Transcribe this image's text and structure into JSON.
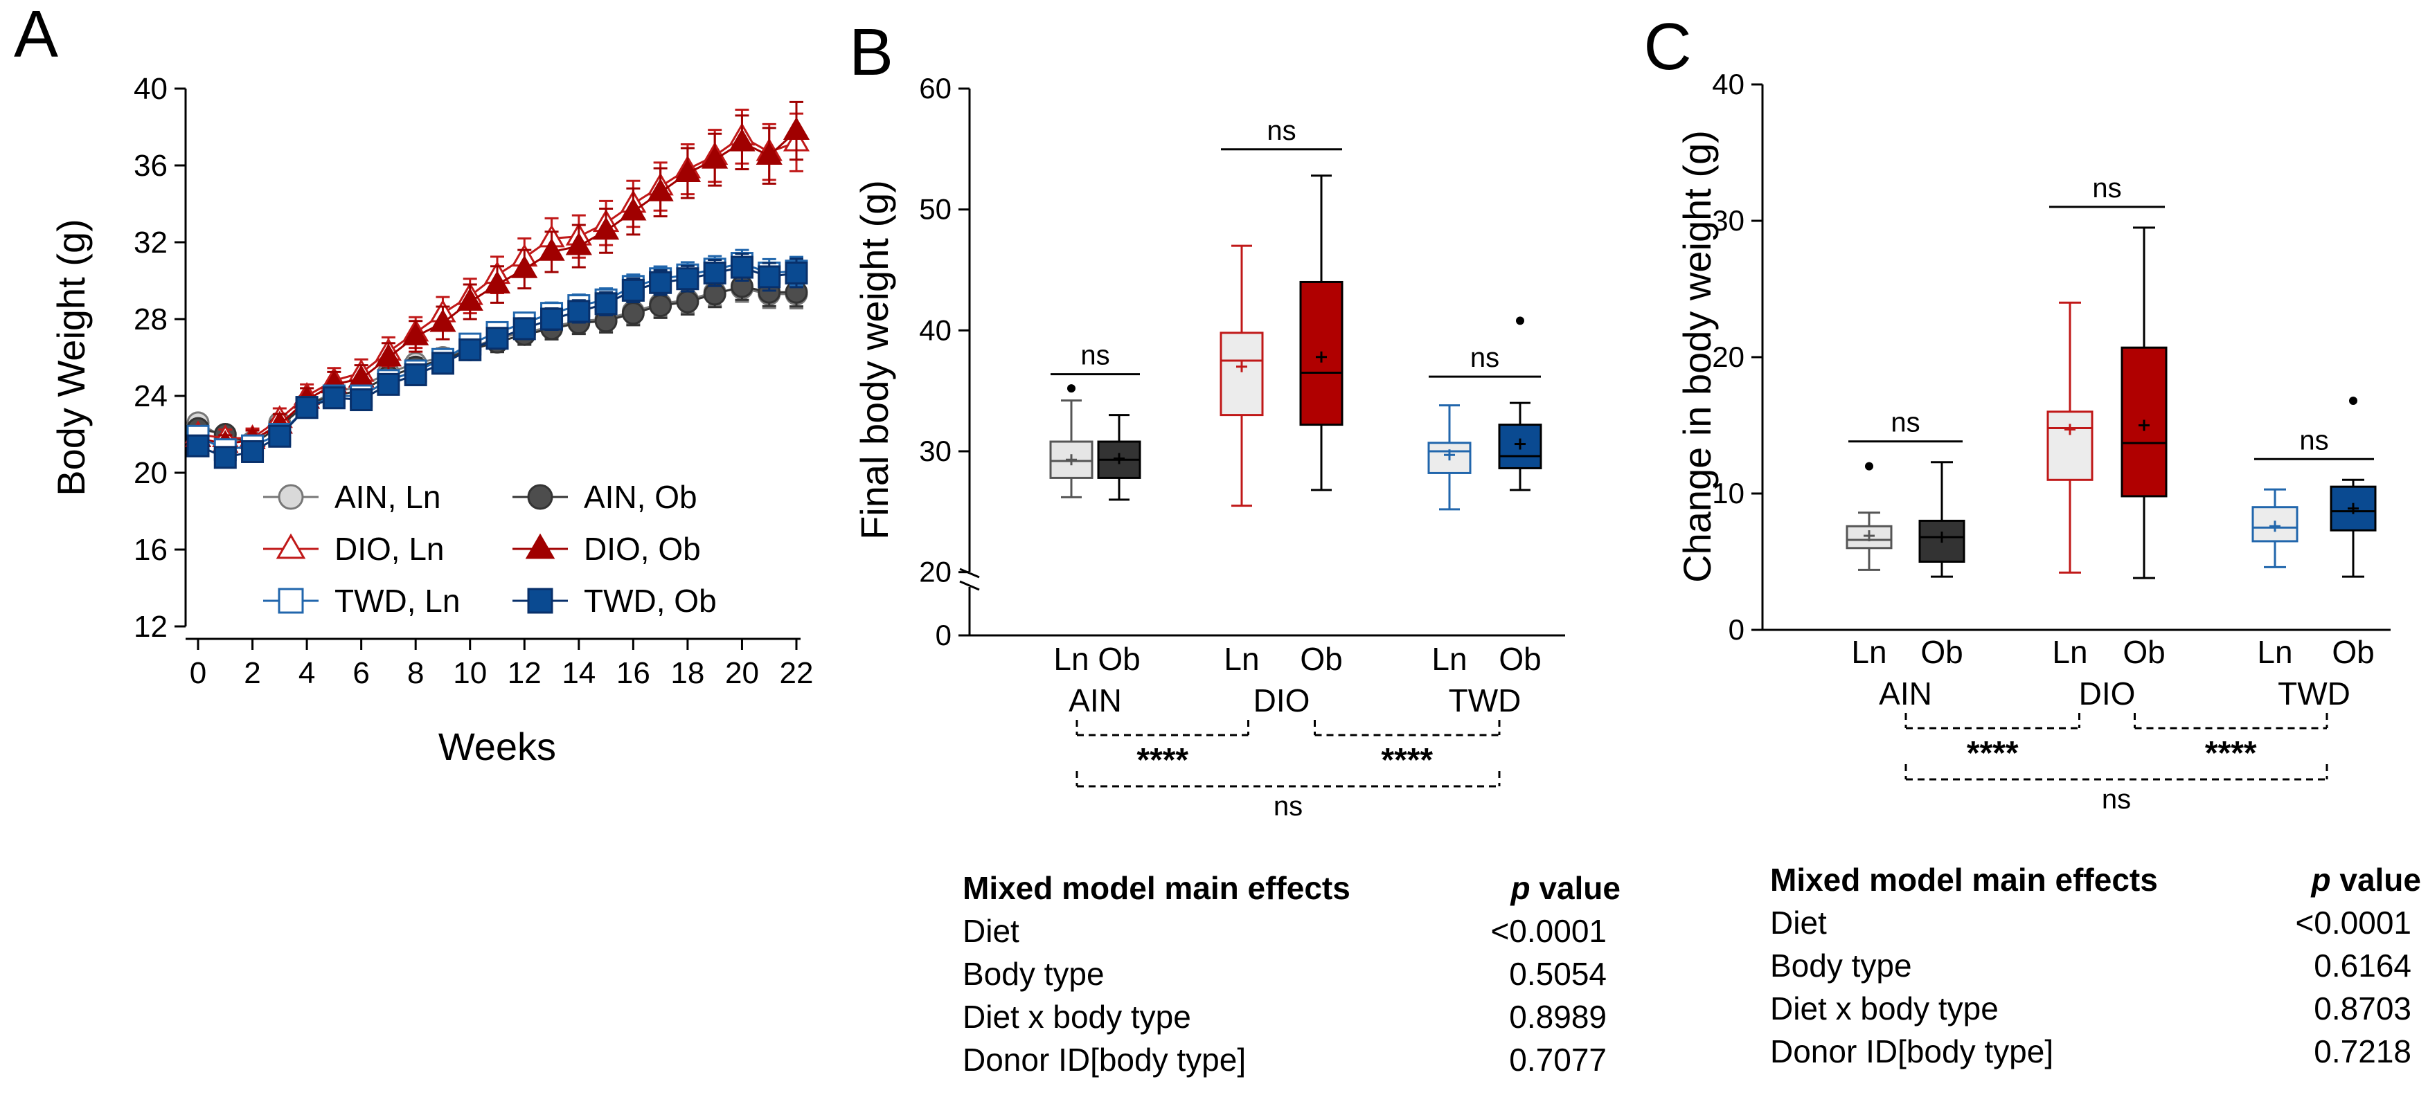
{
  "panels": {
    "A": {
      "letter": "A",
      "chart_data": {
        "type": "line",
        "xlabel": "Weeks",
        "ylabel": "Body Weight (g)",
        "xlim": [
          0,
          22
        ],
        "ylim": [
          12,
          40
        ],
        "xticks": [
          "0",
          "2",
          "4",
          "6",
          "8",
          "10",
          "12",
          "14",
          "16",
          "18",
          "20",
          "22"
        ],
        "yticks": [
          "12",
          "16",
          "20",
          "24",
          "28",
          "32",
          "36",
          "40"
        ],
        "x": [
          0,
          1,
          2,
          3,
          4,
          5,
          6,
          7,
          8,
          9,
          10,
          11,
          12,
          13,
          14,
          15,
          16,
          17,
          18,
          19,
          20,
          21,
          22
        ],
        "legend_position": "bottom-right",
        "series": [
          {
            "name": "AIN, Ln",
            "color": "#777777",
            "fill": "#d9d9d9",
            "marker": "circle",
            "values": [
              22.6,
              21.8,
              21.6,
              22.6,
              23.5,
              24.2,
              24.5,
              25.2,
              25.7,
              26.0,
              26.5,
              27.0,
              27.3,
              27.6,
              27.9,
              28.0,
              28.4,
              28.8,
              29.0,
              29.4,
              29.6,
              29.3,
              29.3
            ]
          },
          {
            "name": "AIN, Ob",
            "color": "#333333",
            "fill": "#4d4d4d",
            "marker": "circle",
            "values": [
              22.3,
              22.0,
              21.5,
              22.4,
              23.6,
              24.0,
              24.3,
              25.0,
              25.5,
              25.9,
              26.4,
              26.8,
              27.2,
              27.5,
              27.8,
              27.9,
              28.3,
              28.7,
              28.9,
              29.3,
              29.7,
              29.4,
              29.4
            ]
          },
          {
            "name": "DIO, Ln",
            "color": "#c01818",
            "fill": "#ffffff",
            "marker": "triangle",
            "values": [
              22.0,
              21.8,
              21.8,
              22.8,
              24.0,
              24.8,
              25.2,
              26.3,
              27.3,
              28.3,
              29.2,
              30.3,
              31.2,
              32.2,
              32.3,
              33.0,
              34.0,
              34.9,
              35.8,
              36.5,
              37.5,
              36.7,
              37.2
            ]
          },
          {
            "name": "DIO, Ob",
            "color": "#a00000",
            "fill": "#a00000",
            "marker": "triangle",
            "values": [
              21.8,
              21.5,
              21.7,
              22.5,
              23.8,
              24.6,
              24.9,
              26.0,
              27.1,
              27.8,
              28.9,
              29.8,
              30.6,
              31.5,
              31.8,
              32.6,
              33.6,
              34.6,
              35.6,
              36.3,
              37.2,
              36.5,
              37.8
            ]
          },
          {
            "name": "TWD, Ln",
            "color": "#2166ac",
            "fill": "#ffffff",
            "marker": "square",
            "values": [
              21.9,
              21.2,
              21.4,
              22.0,
              23.4,
              24.0,
              24.0,
              24.8,
              25.3,
              25.9,
              26.7,
              27.3,
              27.8,
              28.3,
              28.7,
              29.0,
              29.7,
              30.1,
              30.3,
              30.6,
              30.9,
              30.4,
              30.5
            ]
          },
          {
            "name": "TWD, Ob",
            "color": "#08306b",
            "fill": "#0a4a91",
            "marker": "square",
            "values": [
              21.4,
              20.8,
              21.1,
              21.9,
              23.4,
              23.9,
              23.8,
              24.6,
              25.1,
              25.7,
              26.4,
              27.0,
              27.5,
              28.0,
              28.4,
              28.8,
              29.5,
              29.9,
              30.1,
              30.4,
              30.7,
              30.2,
              30.4
            ]
          }
        ]
      }
    },
    "B": {
      "letter": "B",
      "chart_data": {
        "type": "box",
        "ylabel": "Final body weight (g)",
        "ylim": [
          0,
          60
        ],
        "axis_break": [
          0,
          20
        ],
        "yticks": [
          "0",
          "20",
          "30",
          "40",
          "50",
          "60"
        ],
        "groups": [
          {
            "name": "AIN",
            "boxes": [
              {
                "label": "Ln",
                "color": "#555555",
                "fill": "#e6e6e6",
                "min": 26.2,
                "q1": 27.8,
                "median": 29.2,
                "q3": 30.8,
                "max": 34.2,
                "mean": 29.3,
                "outliers": [
                  35.2
                ]
              },
              {
                "label": "Ob",
                "color": "#000000",
                "fill": "#333333",
                "min": 26.0,
                "q1": 27.8,
                "median": 29.3,
                "q3": 30.8,
                "max": 33.0,
                "mean": 29.4,
                "outliers": []
              }
            ],
            "sig": "ns"
          },
          {
            "name": "DIO",
            "boxes": [
              {
                "label": "Ln",
                "color": "#c01818",
                "fill": "#ececec",
                "min": 25.5,
                "q1": 33.0,
                "median": 37.5,
                "q3": 39.8,
                "max": 47.0,
                "mean": 37.0,
                "outliers": []
              },
              {
                "label": "Ob",
                "color": "#000000",
                "fill": "#b00000",
                "min": 26.8,
                "q1": 32.2,
                "median": 36.5,
                "q3": 44.0,
                "max": 52.8,
                "mean": 37.8,
                "outliers": []
              }
            ],
            "sig": "ns"
          },
          {
            "name": "TWD",
            "boxes": [
              {
                "label": "Ln",
                "color": "#2166ac",
                "fill": "#ececec",
                "min": 25.2,
                "q1": 28.2,
                "median": 30.0,
                "q3": 30.7,
                "max": 33.8,
                "mean": 29.7,
                "outliers": []
              },
              {
                "label": "Ob",
                "color": "#000000",
                "fill": "#0a4a91",
                "min": 26.8,
                "q1": 28.6,
                "median": 29.6,
                "q3": 32.2,
                "max": 34.0,
                "mean": 30.6,
                "outliers": [
                  40.8
                ]
              }
            ],
            "sig": "ns"
          }
        ],
        "comparisons": [
          {
            "from": "AIN",
            "to": "DIO",
            "label": "****"
          },
          {
            "from": "DIO",
            "to": "TWD",
            "label": "****"
          },
          {
            "from": "AIN",
            "to": "TWD",
            "label": "ns"
          }
        ]
      },
      "table": {
        "header_label": "Mixed model main effects",
        "header_p": "p",
        "header_value": " value",
        "rows": [
          {
            "label": "Diet",
            "value": "<0.0001"
          },
          {
            "label": "Body type",
            "value": "0.5054"
          },
          {
            "label": "Diet x body type",
            "value": "0.8989"
          },
          {
            "label": "Donor ID[body type]",
            "value": "0.7077"
          }
        ]
      }
    },
    "C": {
      "letter": "C",
      "chart_data": {
        "type": "box",
        "ylabel": "Change in body weight (g)",
        "ylim": [
          0,
          40
        ],
        "yticks": [
          "0",
          "10",
          "20",
          "30",
          "40"
        ],
        "groups": [
          {
            "name": "AIN",
            "boxes": [
              {
                "label": "Ln",
                "color": "#555555",
                "fill": "#e6e6e6",
                "min": 4.4,
                "q1": 6.0,
                "median": 6.6,
                "q3": 7.6,
                "max": 8.6,
                "mean": 6.9,
                "outliers": [
                  12.0
                ]
              },
              {
                "label": "Ob",
                "color": "#000000",
                "fill": "#333333",
                "min": 3.9,
                "q1": 5.0,
                "median": 6.8,
                "q3": 8.0,
                "max": 12.3,
                "mean": 6.8,
                "outliers": []
              }
            ],
            "sig": "ns"
          },
          {
            "name": "DIO",
            "boxes": [
              {
                "label": "Ln",
                "color": "#c01818",
                "fill": "#ececec",
                "min": 4.2,
                "q1": 11.0,
                "median": 14.8,
                "q3": 16.0,
                "max": 24.0,
                "mean": 14.7,
                "outliers": []
              },
              {
                "label": "Ob",
                "color": "#000000",
                "fill": "#b00000",
                "min": 3.8,
                "q1": 9.8,
                "median": 13.7,
                "q3": 20.7,
                "max": 29.5,
                "mean": 15.0,
                "outliers": []
              }
            ],
            "sig": "ns"
          },
          {
            "name": "TWD",
            "boxes": [
              {
                "label": "Ln",
                "color": "#2166ac",
                "fill": "#ececec",
                "min": 4.6,
                "q1": 6.5,
                "median": 7.5,
                "q3": 9.0,
                "max": 10.3,
                "mean": 7.6,
                "outliers": []
              },
              {
                "label": "Ob",
                "color": "#000000",
                "fill": "#0a4a91",
                "min": 3.9,
                "q1": 7.3,
                "median": 8.7,
                "q3": 10.5,
                "max": 11.0,
                "mean": 8.9,
                "outliers": [
                  16.8
                ]
              }
            ],
            "sig": "ns"
          }
        ],
        "comparisons": [
          {
            "from": "AIN",
            "to": "DIO",
            "label": "****"
          },
          {
            "from": "DIO",
            "to": "TWD",
            "label": "****"
          },
          {
            "from": "AIN",
            "to": "TWD",
            "label": "ns"
          }
        ]
      },
      "table": {
        "header_label": "Mixed model main effects",
        "header_p": "p",
        "header_value": " value",
        "rows": [
          {
            "label": "Diet",
            "value": "<0.0001"
          },
          {
            "label": "Body type",
            "value": "0.6164"
          },
          {
            "label": "Diet x body type",
            "value": "0.8703"
          },
          {
            "label": "Donor ID[body type]",
            "value": "0.7218"
          }
        ]
      }
    }
  }
}
